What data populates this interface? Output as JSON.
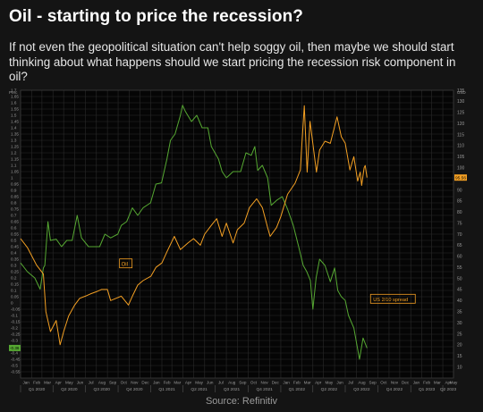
{
  "header": {
    "title": "Oil - starting to price the recession?",
    "subtitle": "If not even the geopolitical situation can't help soggy oil, then maybe we should start thinking about what happens should we start pricing the recession risk component in oil?"
  },
  "footer": {
    "source": "Source: Refinitiv"
  },
  "colors": {
    "background": "#141414",
    "plot_background": "#050505",
    "grid": "#2b2b2b",
    "axis_text": "#9a9a9a",
    "oil": "#f4a023",
    "spread": "#56a832"
  },
  "chart_data": {
    "type": "line",
    "grid": true,
    "x_range": [
      "2020-01-01",
      "2023-05-01"
    ],
    "x_axis": {
      "months": [
        "Jan",
        "Feb",
        "Mar",
        "Apr",
        "May",
        "Jun",
        "Jul",
        "Aug",
        "Sep",
        "Oct",
        "Nov",
        "Dec",
        "Jan",
        "Feb",
        "Mar",
        "Apr",
        "May",
        "Jun",
        "Jul",
        "Aug",
        "Sep",
        "Oct",
        "Nov",
        "Dec",
        "Jan",
        "Feb",
        "Mar",
        "Apr",
        "May",
        "Jun",
        "Jul",
        "Aug",
        "Sep",
        "Oct",
        "Nov",
        "Dec",
        "Jan",
        "Feb",
        "Mar",
        "Apr",
        "May"
      ],
      "quarters": [
        "Q1 2020",
        "Q2 2020",
        "Q3 2020",
        "Q4 2020",
        "Q1 2021",
        "Q2 2021",
        "Q3 2021",
        "Q4 2021",
        "Q1 2022",
        "Q2 2022",
        "Q3 2022",
        "Q4 2022",
        "Q1 2023",
        "Q2 2023"
      ]
    },
    "left_axis": {
      "min": -0.6,
      "max": 1.7,
      "ticks": [
        "1.7",
        "1.65",
        "1.6",
        "1.55",
        "1.5",
        "1.45",
        "1.4",
        "1.35",
        "1.3",
        "1.25",
        "1.2",
        "1.15",
        "1.1",
        "1.05",
        "1",
        "0.95",
        "0.9",
        "0.85",
        "0.8",
        "0.75",
        "0.7",
        "0.65",
        "0.6",
        "0.55",
        "0.5",
        "0.45",
        "0.4",
        "0.35",
        "0.3",
        "0.25",
        "0.2",
        "0.15",
        "0.1",
        "0.05",
        "0",
        "-0.05",
        "-0.1",
        "-0.15",
        "-0.2",
        "-0.25",
        "-0.3",
        "-0.35",
        "-0.4",
        "-0.45",
        "-0.5",
        "-0.55"
      ],
      "unit_label": "Perc"
    },
    "right_axis": {
      "min": 5,
      "max": 135,
      "ticks": [
        "135",
        "130",
        "125",
        "120",
        "115",
        "110",
        "105",
        "100",
        "95",
        "90",
        "85",
        "80",
        "75",
        "70",
        "65",
        "60",
        "55",
        "50",
        "45",
        "40",
        "35",
        "30",
        "25",
        "20",
        "15",
        "10"
      ],
      "unit_label": "USD"
    },
    "series": [
      {
        "name": "Oil",
        "axis": "right",
        "last_value": "95.56",
        "points": [
          [
            "2020-01-01",
            68
          ],
          [
            "2020-01-20",
            64
          ],
          [
            "2020-02-15",
            56
          ],
          [
            "2020-03-05",
            52
          ],
          [
            "2020-03-12",
            35
          ],
          [
            "2020-03-25",
            26
          ],
          [
            "2020-04-10",
            31
          ],
          [
            "2020-04-21",
            20
          ],
          [
            "2020-05-01",
            26
          ],
          [
            "2020-05-15",
            33
          ],
          [
            "2020-06-01",
            38
          ],
          [
            "2020-06-15",
            41
          ],
          [
            "2020-07-01",
            42
          ],
          [
            "2020-07-15",
            43
          ],
          [
            "2020-08-01",
            44
          ],
          [
            "2020-08-15",
            45
          ],
          [
            "2020-09-01",
            45
          ],
          [
            "2020-09-10",
            40
          ],
          [
            "2020-09-25",
            41
          ],
          [
            "2020-10-10",
            42
          ],
          [
            "2020-10-30",
            38
          ],
          [
            "2020-11-10",
            42
          ],
          [
            "2020-11-25",
            47
          ],
          [
            "2020-12-10",
            49
          ],
          [
            "2021-01-01",
            51
          ],
          [
            "2021-01-15",
            55
          ],
          [
            "2021-02-01",
            57
          ],
          [
            "2021-02-15",
            62
          ],
          [
            "2021-03-08",
            69
          ],
          [
            "2021-03-25",
            63
          ],
          [
            "2021-04-15",
            66
          ],
          [
            "2021-05-01",
            68
          ],
          [
            "2021-05-20",
            65
          ],
          [
            "2021-06-01",
            70
          ],
          [
            "2021-06-20",
            74
          ],
          [
            "2021-07-05",
            77
          ],
          [
            "2021-07-20",
            69
          ],
          [
            "2021-08-01",
            75
          ],
          [
            "2021-08-20",
            66
          ],
          [
            "2021-09-01",
            72
          ],
          [
            "2021-09-20",
            75
          ],
          [
            "2021-10-05",
            82
          ],
          [
            "2021-10-25",
            86
          ],
          [
            "2021-11-10",
            82
          ],
          [
            "2021-11-25",
            73
          ],
          [
            "2021-12-02",
            69
          ],
          [
            "2021-12-20",
            73
          ],
          [
            "2022-01-01",
            78
          ],
          [
            "2022-01-20",
            88
          ],
          [
            "2022-02-10",
            93
          ],
          [
            "2022-02-25",
            99
          ],
          [
            "2022-03-01",
            110
          ],
          [
            "2022-03-08",
            128
          ],
          [
            "2022-03-16",
            98
          ],
          [
            "2022-03-24",
            121
          ],
          [
            "2022-04-11",
            98
          ],
          [
            "2022-04-20",
            108
          ],
          [
            "2022-05-05",
            112
          ],
          [
            "2022-05-20",
            111
          ],
          [
            "2022-06-08",
            123
          ],
          [
            "2022-06-20",
            114
          ],
          [
            "2022-07-01",
            111
          ],
          [
            "2022-07-14",
            99
          ],
          [
            "2022-07-25",
            105
          ],
          [
            "2022-08-05",
            94
          ],
          [
            "2022-08-12",
            98
          ],
          [
            "2022-08-16",
            92
          ],
          [
            "2022-08-23",
            100
          ],
          [
            "2022-08-26",
            101
          ],
          [
            "2022-08-31",
            95.56
          ]
        ]
      },
      {
        "name": "US 2/10 spread",
        "axis": "left",
        "last_value": "-0.36",
        "points": [
          [
            "2020-01-01",
            0.32
          ],
          [
            "2020-01-20",
            0.25
          ],
          [
            "2020-02-10",
            0.2
          ],
          [
            "2020-02-25",
            0.11
          ],
          [
            "2020-03-05",
            0.28
          ],
          [
            "2020-03-09",
            0.3
          ],
          [
            "2020-03-18",
            0.65
          ],
          [
            "2020-03-25",
            0.5
          ],
          [
            "2020-04-10",
            0.51
          ],
          [
            "2020-04-25",
            0.45
          ],
          [
            "2020-05-10",
            0.5
          ],
          [
            "2020-05-25",
            0.5
          ],
          [
            "2020-06-08",
            0.7
          ],
          [
            "2020-06-20",
            0.52
          ],
          [
            "2020-07-10",
            0.45
          ],
          [
            "2020-07-25",
            0.45
          ],
          [
            "2020-08-10",
            0.45
          ],
          [
            "2020-08-25",
            0.55
          ],
          [
            "2020-09-10",
            0.52
          ],
          [
            "2020-09-30",
            0.55
          ],
          [
            "2020-10-10",
            0.62
          ],
          [
            "2020-10-25",
            0.65
          ],
          [
            "2020-11-10",
            0.76
          ],
          [
            "2020-11-25",
            0.7
          ],
          [
            "2020-12-10",
            0.76
          ],
          [
            "2020-12-31",
            0.8
          ],
          [
            "2021-01-15",
            0.95
          ],
          [
            "2021-01-31",
            0.96
          ],
          [
            "2021-02-15",
            1.15
          ],
          [
            "2021-02-25",
            1.3
          ],
          [
            "2021-03-10",
            1.35
          ],
          [
            "2021-03-25",
            1.5
          ],
          [
            "2021-03-31",
            1.58
          ],
          [
            "2021-04-08",
            1.53
          ],
          [
            "2021-04-25",
            1.45
          ],
          [
            "2021-05-10",
            1.5
          ],
          [
            "2021-05-25",
            1.4
          ],
          [
            "2021-06-10",
            1.4
          ],
          [
            "2021-06-20",
            1.25
          ],
          [
            "2021-07-10",
            1.15
          ],
          [
            "2021-07-20",
            1.05
          ],
          [
            "2021-08-01",
            1.0
          ],
          [
            "2021-08-20",
            1.05
          ],
          [
            "2021-09-10",
            1.05
          ],
          [
            "2021-09-25",
            1.2
          ],
          [
            "2021-10-10",
            1.18
          ],
          [
            "2021-10-20",
            1.25
          ],
          [
            "2021-10-28",
            1.06
          ],
          [
            "2021-11-10",
            1.1
          ],
          [
            "2021-11-25",
            1.0
          ],
          [
            "2021-12-05",
            0.78
          ],
          [
            "2021-12-20",
            0.82
          ],
          [
            "2022-01-05",
            0.85
          ],
          [
            "2022-01-20",
            0.75
          ],
          [
            "2022-02-05",
            0.62
          ],
          [
            "2022-02-20",
            0.45
          ],
          [
            "2022-03-05",
            0.3
          ],
          [
            "2022-03-15",
            0.25
          ],
          [
            "2022-03-25",
            0.18
          ],
          [
            "2022-04-01",
            -0.05
          ],
          [
            "2022-04-10",
            0.2
          ],
          [
            "2022-04-20",
            0.35
          ],
          [
            "2022-05-05",
            0.3
          ],
          [
            "2022-05-20",
            0.17
          ],
          [
            "2022-06-01",
            0.28
          ],
          [
            "2022-06-10",
            0.1
          ],
          [
            "2022-06-20",
            0.05
          ],
          [
            "2022-07-01",
            0.02
          ],
          [
            "2022-07-10",
            -0.1
          ],
          [
            "2022-07-25",
            -0.2
          ],
          [
            "2022-08-10",
            -0.45
          ],
          [
            "2022-08-20",
            -0.28
          ],
          [
            "2022-08-31",
            -0.36
          ]
        ]
      }
    ],
    "annotations": [
      "Oil",
      "US 2/10 spread"
    ]
  }
}
